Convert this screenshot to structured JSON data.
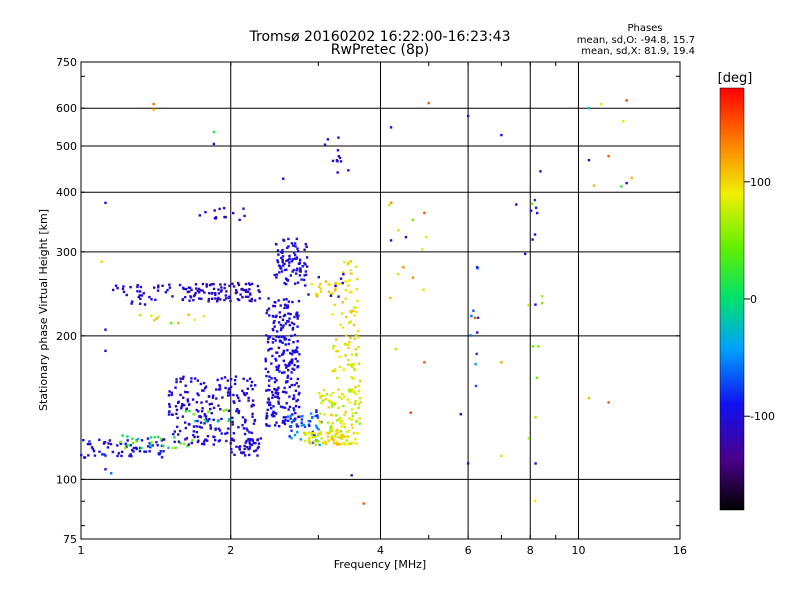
{
  "chart_data": {
    "type": "scatter",
    "title": "Tromsø 20160202 16:22:00-16:23:43",
    "subtitle": "RwPretec (8p)",
    "xlabel": "Frequency [MHz]",
    "ylabel": "Stationary phase Virtual Height [km]",
    "x_scale": "log",
    "y_scale": "log",
    "xlim": [
      1,
      16
    ],
    "ylim": [
      75,
      750
    ],
    "x_ticks": [
      1,
      2,
      4,
      6,
      8,
      10,
      16
    ],
    "y_ticks": [
      75,
      100,
      200,
      300,
      400,
      500,
      600,
      750
    ],
    "grid": true,
    "colorbar": {
      "label": "[deg]",
      "range": [
        -180,
        180
      ],
      "ticks": [
        100,
        0,
        -100
      ]
    },
    "stats": {
      "title": "Phases",
      "line1": "mean, sd,O:  -94.8, 15.7",
      "line2": "mean, sd,X:  81.9, 19.4"
    },
    "clusters": [
      {
        "x": [
          1.0,
          1.5
        ],
        "y": [
          111,
          122
        ],
        "phase": [
          -110,
          -80
        ],
        "n": 70
      },
      {
        "x": [
          1.2,
          1.7
        ],
        "y": [
          116,
          124
        ],
        "phase": [
          -20,
          70
        ],
        "n": 25
      },
      {
        "x": [
          1.5,
          2.25
        ],
        "y": [
          118,
          165
        ],
        "phase": [
          -115,
          -95
        ],
        "n": 220
      },
      {
        "x": [
          2.0,
          2.3
        ],
        "y": [
          112,
          122
        ],
        "phase": [
          -115,
          -100
        ],
        "n": 40
      },
      {
        "x": [
          1.6,
          2.0
        ],
        "y": [
          132,
          140
        ],
        "phase": [
          -40,
          60
        ],
        "n": 12
      },
      {
        "x": [
          1.15,
          1.7
        ],
        "y": [
          232,
          256
        ],
        "phase": [
          -115,
          -95
        ],
        "n": 45
      },
      {
        "x": [
          1.65,
          2.3
        ],
        "y": [
          236,
          258
        ],
        "phase": [
          -118,
          -100
        ],
        "n": 90
      },
      {
        "x": [
          1.3,
          1.8
        ],
        "y": [
          212,
          222
        ],
        "phase": [
          40,
          120
        ],
        "n": 10
      },
      {
        "x": [
          1.65,
          2.15
        ],
        "y": [
          350,
          372
        ],
        "phase": [
          -118,
          -100
        ],
        "n": 14
      },
      {
        "x": [
          2.35,
          2.75
        ],
        "y": [
          128,
          240
        ],
        "phase": [
          -112,
          -90
        ],
        "n": 260
      },
      {
        "x": [
          2.45,
          2.85
        ],
        "y": [
          255,
          320
        ],
        "phase": [
          -110,
          -90
        ],
        "n": 90
      },
      {
        "x": [
          2.6,
          3.05
        ],
        "y": [
          118,
          140
        ],
        "phase": [
          -90,
          -40
        ],
        "n": 45
      },
      {
        "x": [
          2.8,
          3.6
        ],
        "y": [
          118,
          126
        ],
        "phase": [
          70,
          112
        ],
        "n": 70
      },
      {
        "x": [
          3.0,
          3.65
        ],
        "y": [
          125,
          155
        ],
        "phase": [
          55,
          105
        ],
        "n": 90
      },
      {
        "x": [
          3.2,
          3.65
        ],
        "y": [
          155,
          235
        ],
        "phase": [
          70,
          110
        ],
        "n": 60
      },
      {
        "x": [
          3.35,
          3.6
        ],
        "y": [
          235,
          290
        ],
        "phase": [
          80,
          110
        ],
        "n": 20
      },
      {
        "x": [
          2.9,
          3.35
        ],
        "y": [
          240,
          260
        ],
        "phase": [
          80,
          120
        ],
        "n": 20
      },
      {
        "x": [
          2.85,
          3.4
        ],
        "y": [
          240,
          275
        ],
        "phase": [
          -110,
          -95
        ],
        "n": 8
      },
      {
        "x": [
          3.0,
          3.45
        ],
        "y": [
          440,
          530
        ],
        "phase": [
          -115,
          -100
        ],
        "n": 12
      },
      {
        "x": [
          4.0,
          5.2
        ],
        "y": [
          160,
          420
        ],
        "phase": [
          40,
          130
        ],
        "n": 12
      },
      {
        "x": [
          6.0,
          6.3
        ],
        "y": [
          140,
          300
        ],
        "phase": [
          -100,
          -40
        ],
        "n": 10
      },
      {
        "x": [
          7.8,
          8.4
        ],
        "y": [
          210,
          450
        ],
        "phase": [
          -110,
          -80
        ],
        "n": 9
      },
      {
        "x": [
          7.9,
          8.6
        ],
        "y": [
          80,
          420
        ],
        "phase": [
          40,
          100
        ],
        "n": 10
      },
      {
        "x": [
          10.5,
          13.0
        ],
        "y": [
          410,
          620
        ],
        "phase": [
          -110,
          150
        ],
        "n": 6
      }
    ],
    "points": [
      {
        "x": 1.4,
        "y": 612,
        "phase": 140
      },
      {
        "x": 1.4,
        "y": 596,
        "phase": 110
      },
      {
        "x": 1.85,
        "y": 535,
        "phase": 20
      },
      {
        "x": 1.85,
        "y": 505,
        "phase": -100
      },
      {
        "x": 1.12,
        "y": 380,
        "phase": -110
      },
      {
        "x": 1.1,
        "y": 286,
        "phase": 100
      },
      {
        "x": 1.12,
        "y": 206,
        "phase": -110
      },
      {
        "x": 1.12,
        "y": 186,
        "phase": -110
      },
      {
        "x": 1.12,
        "y": 105,
        "phase": -110
      },
      {
        "x": 1.15,
        "y": 103,
        "phase": -60
      },
      {
        "x": 2.55,
        "y": 427,
        "phase": -110
      },
      {
        "x": 3.5,
        "y": 102,
        "phase": -110
      },
      {
        "x": 3.7,
        "y": 89,
        "phase": 150
      },
      {
        "x": 4.2,
        "y": 547,
        "phase": -90
      },
      {
        "x": 5.0,
        "y": 615,
        "phase": 150
      },
      {
        "x": 4.9,
        "y": 362,
        "phase": 150
      },
      {
        "x": 4.5,
        "y": 322,
        "phase": -110
      },
      {
        "x": 4.2,
        "y": 317,
        "phase": -110
      },
      {
        "x": 4.9,
        "y": 176,
        "phase": 150
      },
      {
        "x": 4.6,
        "y": 138,
        "phase": 160
      },
      {
        "x": 5.8,
        "y": 137,
        "phase": -110
      },
      {
        "x": 6.0,
        "y": 578,
        "phase": -110
      },
      {
        "x": 6.0,
        "y": 108,
        "phase": -110
      },
      {
        "x": 6.2,
        "y": 218,
        "phase": 150
      },
      {
        "x": 7.0,
        "y": 527,
        "phase": -90
      },
      {
        "x": 7.0,
        "y": 176,
        "phase": 120
      },
      {
        "x": 7.0,
        "y": 112,
        "phase": 100
      },
      {
        "x": 7.5,
        "y": 377,
        "phase": -110
      },
      {
        "x": 8.2,
        "y": 108,
        "phase": -110
      },
      {
        "x": 10.5,
        "y": 600,
        "phase": -20
      },
      {
        "x": 10.5,
        "y": 467,
        "phase": -110
      },
      {
        "x": 10.5,
        "y": 148,
        "phase": 110
      },
      {
        "x": 11.5,
        "y": 145,
        "phase": 150
      },
      {
        "x": 12.5,
        "y": 623,
        "phase": 160
      },
      {
        "x": 12.5,
        "y": 418,
        "phase": -110
      }
    ]
  }
}
